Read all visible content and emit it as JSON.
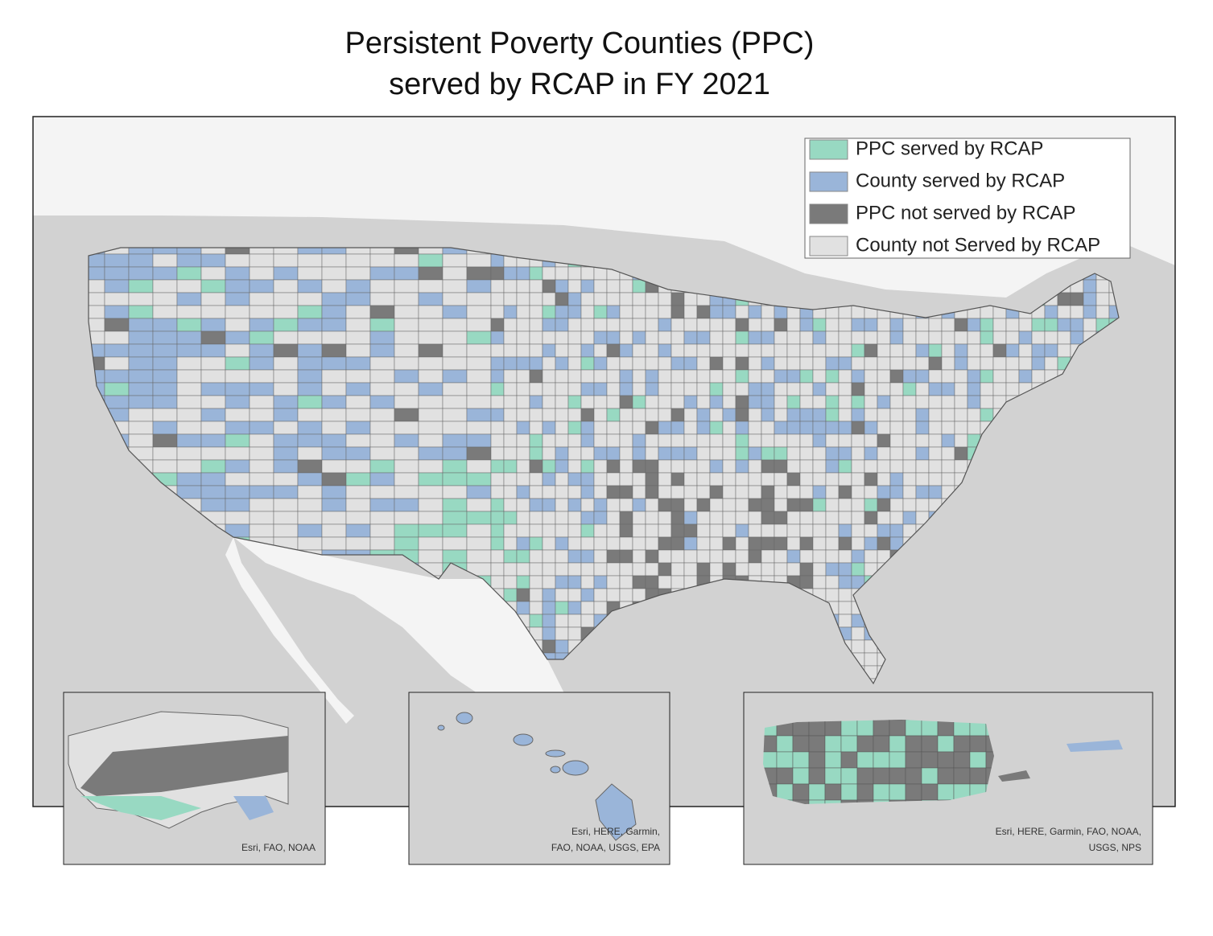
{
  "title": {
    "lines": [
      "Persistent Poverty Counties (PPC)",
      "served by RCAP in FY 2021"
    ]
  },
  "legend": {
    "items": [
      {
        "label": "PPC served by RCAP",
        "color": "#98d9c2"
      },
      {
        "label": "County served by RCAP",
        "color": "#9ab5d9"
      },
      {
        "label": "PPC not served by RCAP",
        "color": "#7a7a7a"
      },
      {
        "label": "County not Served by RCAP",
        "color": "#e1e1e1"
      }
    ]
  },
  "insets": [
    {
      "name": "Alaska",
      "attribution": [
        "Esri, FAO, NOAA"
      ]
    },
    {
      "name": "Hawaii",
      "attribution": [
        "Esri, HERE, Garmin,",
        "FAO, NOAA, USGS, EPA"
      ]
    },
    {
      "name": "Puerto Rico",
      "attribution": [
        "Esri, HERE, Garmin, FAO, NOAA,",
        "USGS, NPS"
      ]
    }
  ]
}
